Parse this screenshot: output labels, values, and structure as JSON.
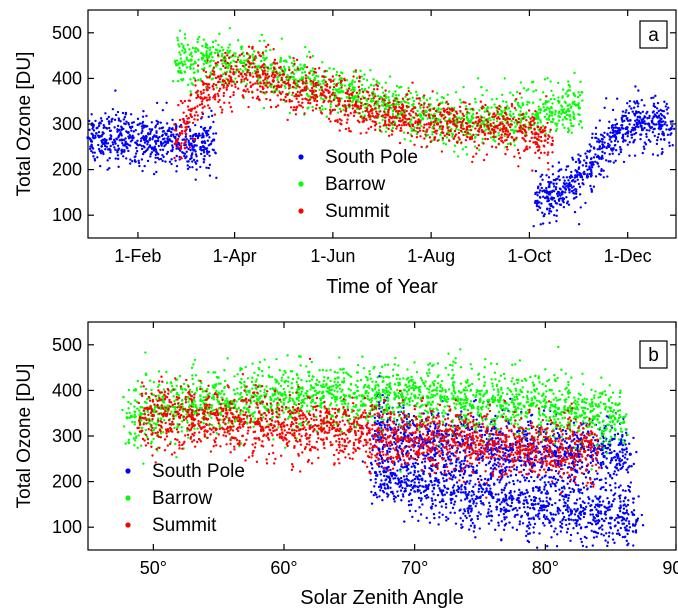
{
  "chart_data": [
    {
      "panel": "a",
      "type": "scatter",
      "xlabel": "Time of Year",
      "ylabel": "Total Ozone [DU]",
      "xlim": [
        "2000-01-01",
        "2000-12-31"
      ],
      "ylim": [
        50,
        550
      ],
      "xticks": [
        {
          "date": "2000-02-01",
          "label": "1-Feb"
        },
        {
          "date": "2000-04-01",
          "label": "1-Apr"
        },
        {
          "date": "2000-06-01",
          "label": "1-Jun"
        },
        {
          "date": "2000-08-01",
          "label": "1-Aug"
        },
        {
          "date": "2000-10-01",
          "label": "1-Oct"
        },
        {
          "date": "2000-12-01",
          "label": "1-Dec"
        }
      ],
      "yticks": [
        100,
        200,
        300,
        400,
        500
      ],
      "legend_position": "lower-center",
      "series": [
        {
          "name": "South Pole",
          "color": "#0000ff",
          "x": [
            "2000-01-01",
            "2000-01-08",
            "2000-01-15",
            "2000-01-22",
            "2000-01-29",
            "2000-02-05",
            "2000-02-12",
            "2000-02-19",
            "2000-02-26",
            "2000-03-05",
            "2000-03-12",
            "2000-03-19",
            "2000-10-05",
            "2000-10-12",
            "2000-10-19",
            "2000-10-26",
            "2000-11-02",
            "2000-11-09",
            "2000-11-16",
            "2000-11-23",
            "2000-11-30",
            "2000-12-07",
            "2000-12-14",
            "2000-12-21",
            "2000-12-28"
          ],
          "y": [
            270,
            272,
            268,
            265,
            270,
            266,
            262,
            260,
            258,
            256,
            260,
            265,
            130,
            140,
            150,
            165,
            185,
            215,
            250,
            275,
            290,
            300,
            300,
            295,
            290
          ]
        },
        {
          "name": "Barrow",
          "color": "#00ff00",
          "x": [
            "2000-02-25",
            "2000-03-05",
            "2000-03-15",
            "2000-03-25",
            "2000-04-05",
            "2000-04-15",
            "2000-04-25",
            "2000-05-05",
            "2000-05-15",
            "2000-05-25",
            "2000-06-05",
            "2000-06-15",
            "2000-06-25",
            "2000-07-05",
            "2000-07-15",
            "2000-07-25",
            "2000-08-05",
            "2000-08-15",
            "2000-08-25",
            "2000-09-05",
            "2000-09-15",
            "2000-09-25",
            "2000-10-05",
            "2000-10-15",
            "2000-10-25",
            "2000-11-01"
          ],
          "y": [
            430,
            440,
            445,
            440,
            435,
            425,
            415,
            400,
            390,
            380,
            370,
            360,
            350,
            340,
            330,
            320,
            310,
            305,
            305,
            310,
            315,
            320,
            320,
            325,
            330,
            335
          ]
        },
        {
          "name": "Summit",
          "color": "#ff0000",
          "x": [
            "2000-02-25",
            "2000-03-05",
            "2000-03-15",
            "2000-03-25",
            "2000-04-05",
            "2000-04-15",
            "2000-04-25",
            "2000-05-05",
            "2000-05-15",
            "2000-05-25",
            "2000-06-05",
            "2000-06-15",
            "2000-06-25",
            "2000-07-05",
            "2000-07-15",
            "2000-07-25",
            "2000-08-05",
            "2000-08-15",
            "2000-08-25",
            "2000-09-05",
            "2000-09-15",
            "2000-09-25",
            "2000-10-05",
            "2000-10-15"
          ],
          "y": [
            260,
            330,
            375,
            395,
            410,
            405,
            395,
            385,
            375,
            365,
            350,
            340,
            330,
            320,
            315,
            305,
            300,
            300,
            295,
            295,
            290,
            285,
            280,
            255
          ]
        }
      ]
    },
    {
      "panel": "b",
      "type": "scatter",
      "xlabel": "Solar Zenith Angle",
      "ylabel": "Total Ozone [DU]",
      "xlim": [
        45,
        90
      ],
      "ylim": [
        50,
        550
      ],
      "xticks": [
        {
          "value": 50,
          "label": "50°"
        },
        {
          "value": 60,
          "label": "60°"
        },
        {
          "value": 70,
          "label": "70°"
        },
        {
          "value": 80,
          "label": "80°"
        },
        {
          "value": 90,
          "label": "90°"
        }
      ],
      "yticks": [
        100,
        200,
        300,
        400,
        500
      ],
      "legend_position": "lower-left",
      "series": [
        {
          "name": "South Pole",
          "color": "#0000ff",
          "x": [
            66.8,
            67.5,
            68.5,
            69.5,
            70.5,
            71.5,
            72.5,
            73.5,
            74.5,
            75.5,
            76.5,
            77.5,
            78.5,
            79.5,
            80.5,
            81.5,
            82.5,
            83.5,
            84.5,
            85.5,
            86.5,
            67,
            68,
            69,
            70,
            71,
            72,
            73,
            74,
            75,
            76,
            77,
            78,
            79,
            80,
            81,
            82,
            83,
            84,
            85,
            86,
            87
          ],
          "y": [
            300,
            310,
            305,
            300,
            295,
            290,
            285,
            280,
            285,
            280,
            275,
            270,
            270,
            265,
            265,
            260,
            260,
            255,
            255,
            260,
            260,
            220,
            210,
            200,
            190,
            185,
            180,
            175,
            170,
            165,
            165,
            160,
            155,
            150,
            145,
            140,
            135,
            130,
            125,
            120,
            118,
            115
          ]
        },
        {
          "name": "Barrow",
          "color": "#00ff00",
          "x": [
            48,
            49,
            50,
            51,
            52,
            53,
            54,
            55,
            56,
            57,
            58,
            59,
            60,
            61,
            62,
            63,
            64,
            65,
            66,
            67,
            68,
            69,
            70,
            71,
            72,
            73,
            74,
            75,
            76,
            77,
            78,
            79,
            80,
            81,
            82,
            83,
            84,
            85,
            86
          ],
          "y": [
            340,
            345,
            355,
            360,
            365,
            370,
            370,
            375,
            375,
            378,
            380,
            380,
            380,
            382,
            385,
            385,
            385,
            388,
            388,
            390,
            390,
            390,
            388,
            385,
            385,
            382,
            380,
            378,
            375,
            372,
            370,
            368,
            365,
            360,
            355,
            350,
            345,
            340,
            330
          ]
        },
        {
          "name": "Summit",
          "color": "#ff0000",
          "x": [
            49,
            50,
            51,
            52,
            53,
            54,
            55,
            56,
            57,
            58,
            59,
            60,
            61,
            62,
            63,
            64,
            65,
            66,
            67,
            68,
            69,
            70,
            71,
            72,
            73,
            74,
            75,
            76,
            77,
            78,
            79,
            80,
            81,
            82,
            83,
            84
          ],
          "y": [
            340,
            345,
            345,
            342,
            340,
            338,
            335,
            332,
            330,
            328,
            325,
            322,
            320,
            318,
            315,
            312,
            310,
            305,
            300,
            298,
            296,
            295,
            292,
            290,
            288,
            285,
            282,
            280,
            278,
            276,
            274,
            272,
            270,
            268,
            266,
            264
          ]
        }
      ]
    }
  ]
}
